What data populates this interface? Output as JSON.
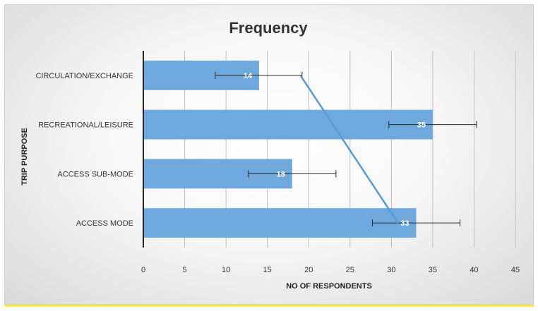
{
  "chart_data": {
    "type": "bar",
    "orientation": "horizontal",
    "title": "Frequency",
    "xlabel": "NO OF RESPONDENTS",
    "ylabel": "TRIP PURPOSE",
    "categories": [
      "CIRCULATION/EXCHANGE",
      "RECREATIONAL/LEISURE",
      "ACCESS SUB-MODE",
      "ACCESS MODE"
    ],
    "values": [
      14,
      35,
      18,
      33
    ],
    "data_labels": [
      "14",
      "35",
      "18",
      "33"
    ],
    "error_bars": [
      [
        8.7,
        19.2
      ],
      [
        29.7,
        40.3
      ],
      [
        12.7,
        23.3
      ],
      [
        27.7,
        38.3
      ]
    ],
    "trendline": [
      [
        19,
        "CIRCULATION/EXCHANGE"
      ],
      [
        30.8,
        "ACCESS MODE"
      ]
    ],
    "xlim": [
      0,
      45
    ],
    "xticks": [
      0,
      5,
      10,
      15,
      20,
      25,
      30,
      35,
      40,
      45
    ],
    "grid": true,
    "bar_color": "#6fa8dc",
    "trend_color": "#5b9bd5"
  }
}
